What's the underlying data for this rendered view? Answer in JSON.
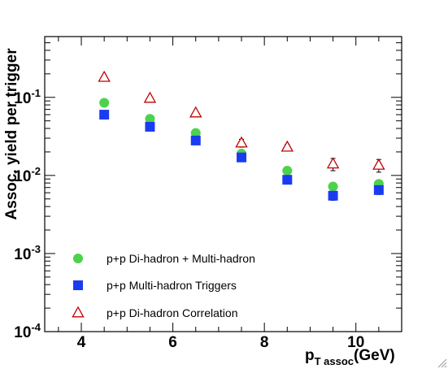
{
  "chart_data": {
    "type": "scatter",
    "title": "",
    "xlabel": "p",
    "xlabel_sub": "T assoc",
    "xlabel_unit": "(GeV)",
    "ylabel": "Assoc. yield per trigger",
    "xlim": [
      3.2,
      11.0
    ],
    "ylim": [
      0.0001,
      0.6
    ],
    "yscale": "log",
    "x_ticks": [
      4,
      6,
      8,
      10
    ],
    "y_ticks": [
      {
        "value": 0.0001,
        "base": "10",
        "exp": "-4"
      },
      {
        "value": 0.001,
        "base": "10",
        "exp": "-3"
      },
      {
        "value": 0.01,
        "base": "10",
        "exp": "-2"
      },
      {
        "value": 0.1,
        "base": "10",
        "exp": "-1"
      }
    ],
    "grid": false,
    "legend_position": "bottom-left",
    "series": [
      {
        "name": "p+p Di-hadron + Multi-hadron",
        "marker": "circle",
        "color": "#4cd24c",
        "x": [
          4.5,
          5.5,
          6.5,
          7.5,
          8.5,
          9.5,
          10.5
        ],
        "y": [
          0.085,
          0.053,
          0.035,
          0.019,
          0.0115,
          0.0072,
          0.0078
        ],
        "err": [
          0,
          0,
          0,
          0,
          0,
          0,
          0
        ]
      },
      {
        "name": "p+p Multi-hadron Triggers",
        "marker": "square",
        "color": "#1a3cf0",
        "x": [
          4.5,
          5.5,
          6.5,
          7.5,
          8.5,
          9.5,
          10.5
        ],
        "y": [
          0.06,
          0.042,
          0.028,
          0.017,
          0.0088,
          0.0055,
          0.0065
        ],
        "err": [
          0,
          0,
          0,
          0.001,
          0.0008,
          0.0007,
          0.0008
        ]
      },
      {
        "name": "p+p Di-hadron Correlation",
        "marker": "triangle-open",
        "color": "#c00000",
        "x": [
          4.5,
          5.5,
          6.5,
          7.5,
          8.5,
          9.5,
          10.5
        ],
        "y": [
          0.18,
          0.097,
          0.063,
          0.026,
          0.023,
          0.014,
          0.0135
        ],
        "err": [
          0,
          0,
          0,
          0.003,
          0.002,
          0.0025,
          0.0025
        ]
      }
    ]
  }
}
